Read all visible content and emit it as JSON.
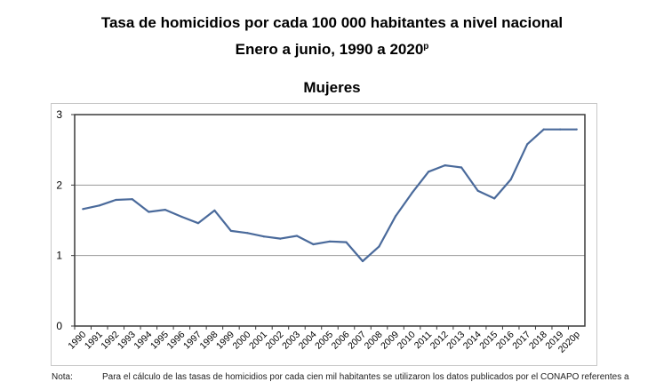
{
  "header": {
    "title": "Tasa de homicidios por cada 100 000 habitantes a nivel nacional",
    "subtitle_main": "Enero a junio, 1990 a 2020",
    "subtitle_sup": "p",
    "series_title": "Mujeres"
  },
  "note": {
    "label": "Nota:",
    "text": "Para el cálculo de las tasas de homicidios por cada cien mil habitantes se utilizaron los datos publicados por el CONAPO referentes a"
  },
  "chart_data": {
    "type": "line",
    "title": "Mujeres",
    "xlabel": "",
    "ylabel": "",
    "ylim": [
      0,
      3
    ],
    "yticks": [
      "0",
      "1",
      "2",
      "3"
    ],
    "grid": true,
    "legend": "none",
    "color": "#4a6a9b",
    "categories": [
      "1990",
      "1991",
      "1992",
      "1993",
      "1994",
      "1995",
      "1996",
      "1997",
      "1998",
      "1999",
      "2000",
      "2001",
      "2002",
      "2003",
      "2004",
      "2005",
      "2006",
      "2007",
      "2008",
      "2009",
      "2010",
      "2011",
      "2012",
      "2013",
      "2014",
      "2015",
      "2016",
      "2017",
      "2018",
      "2019",
      "2020p"
    ],
    "series": [
      {
        "name": "Mujeres",
        "values": [
          1.66,
          1.71,
          1.79,
          1.8,
          1.62,
          1.65,
          1.55,
          1.46,
          1.64,
          1.35,
          1.32,
          1.27,
          1.24,
          1.28,
          1.16,
          1.2,
          1.19,
          0.92,
          1.13,
          1.56,
          1.89,
          2.19,
          2.28,
          2.25,
          1.92,
          1.81,
          2.08,
          2.58,
          2.79,
          2.79,
          2.79
        ]
      }
    ]
  }
}
